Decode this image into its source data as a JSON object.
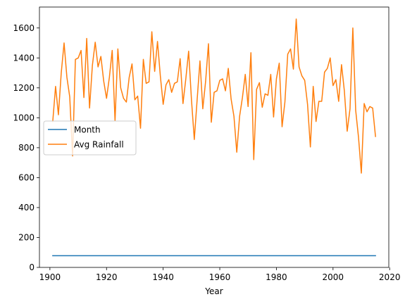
{
  "chart_data": {
    "type": "line",
    "title": "",
    "xlabel": "Year",
    "ylabel": "",
    "xlim": [
      1896.3,
      2019.7
    ],
    "ylim": [
      0,
      1740
    ],
    "xticks": [
      1900,
      1920,
      1940,
      1960,
      1980,
      2000,
      2020
    ],
    "yticks": [
      0,
      200,
      400,
      600,
      800,
      1000,
      1200,
      1400,
      1600
    ],
    "grid": false,
    "legend": {
      "placement": "center-left"
    },
    "x": [
      1901,
      1902,
      1903,
      1904,
      1905,
      1906,
      1907,
      1908,
      1909,
      1910,
      1911,
      1912,
      1913,
      1914,
      1915,
      1916,
      1917,
      1918,
      1919,
      1920,
      1921,
      1922,
      1923,
      1924,
      1925,
      1926,
      1927,
      1928,
      1929,
      1930,
      1931,
      1932,
      1933,
      1934,
      1935,
      1936,
      1937,
      1938,
      1939,
      1940,
      1941,
      1942,
      1943,
      1944,
      1945,
      1946,
      1947,
      1948,
      1949,
      1950,
      1951,
      1952,
      1953,
      1954,
      1955,
      1956,
      1957,
      1958,
      1959,
      1960,
      1961,
      1962,
      1963,
      1964,
      1965,
      1966,
      1967,
      1968,
      1969,
      1970,
      1971,
      1972,
      1973,
      1974,
      1975,
      1976,
      1977,
      1978,
      1979,
      1980,
      1981,
      1982,
      1983,
      1984,
      1985,
      1986,
      1987,
      1988,
      1989,
      1990,
      1991,
      1992,
      1993,
      1994,
      1995,
      1996,
      1997,
      1998,
      1999,
      2000,
      2001,
      2002,
      2003,
      2004,
      2005,
      2006,
      2007,
      2008,
      2009,
      2010,
      2011,
      2012,
      2013,
      2014,
      2015
    ],
    "series": [
      {
        "name": "Month",
        "color": "#1f77b4",
        "values": [
          78,
          78,
          78,
          78,
          78,
          78,
          78,
          78,
          78,
          78,
          78,
          78,
          78,
          78,
          78,
          78,
          78,
          78,
          78,
          78,
          78,
          78,
          78,
          78,
          78,
          78,
          78,
          78,
          78,
          78,
          78,
          78,
          78,
          78,
          78,
          78,
          78,
          78,
          78,
          78,
          78,
          78,
          78,
          78,
          78,
          78,
          78,
          78,
          78,
          78,
          78,
          78,
          78,
          78,
          78,
          78,
          78,
          78,
          78,
          78,
          78,
          78,
          78,
          78,
          78,
          78,
          78,
          78,
          78,
          78,
          78,
          78,
          78,
          78,
          78,
          78,
          78,
          78,
          78,
          78,
          78,
          78,
          78,
          78,
          78,
          78,
          78,
          78,
          78,
          78,
          78,
          78,
          78,
          78,
          78,
          78,
          78,
          78,
          78,
          78,
          78,
          78,
          78,
          78,
          78,
          78,
          78,
          78,
          78,
          78,
          78,
          78,
          78,
          78,
          78
        ]
      },
      {
        "name": "Avg Rainfall",
        "color": "#ff7f0e",
        "values": [
          975,
          1210,
          1020,
          1300,
          1500,
          1270,
          1140,
          745,
          1390,
          1400,
          1450,
          1135,
          1530,
          1065,
          1350,
          1505,
          1340,
          1410,
          1245,
          1130,
          1270,
          1450,
          980,
          1460,
          1200,
          1130,
          1105,
          1270,
          1360,
          1120,
          1145,
          930,
          1390,
          1230,
          1240,
          1575,
          1310,
          1510,
          1280,
          1090,
          1220,
          1255,
          1170,
          1230,
          1240,
          1395,
          1095,
          1260,
          1445,
          1120,
          855,
          1120,
          1380,
          1060,
          1245,
          1495,
          970,
          1170,
          1180,
          1250,
          1260,
          1180,
          1330,
          1125,
          1010,
          770,
          1010,
          1135,
          1290,
          1075,
          1435,
          720,
          1190,
          1235,
          1070,
          1160,
          1150,
          1290,
          1005,
          1260,
          1365,
          940,
          1105,
          1425,
          1460,
          1325,
          1660,
          1340,
          1280,
          1250,
          1090,
          805,
          1210,
          975,
          1110,
          1110,
          1305,
          1330,
          1400,
          1215,
          1255,
          1110,
          1355,
          1180,
          910,
          1060,
          1600,
          1050,
          870,
          630,
          1095,
          1040,
          1075,
          1065,
          875
        ]
      }
    ]
  }
}
